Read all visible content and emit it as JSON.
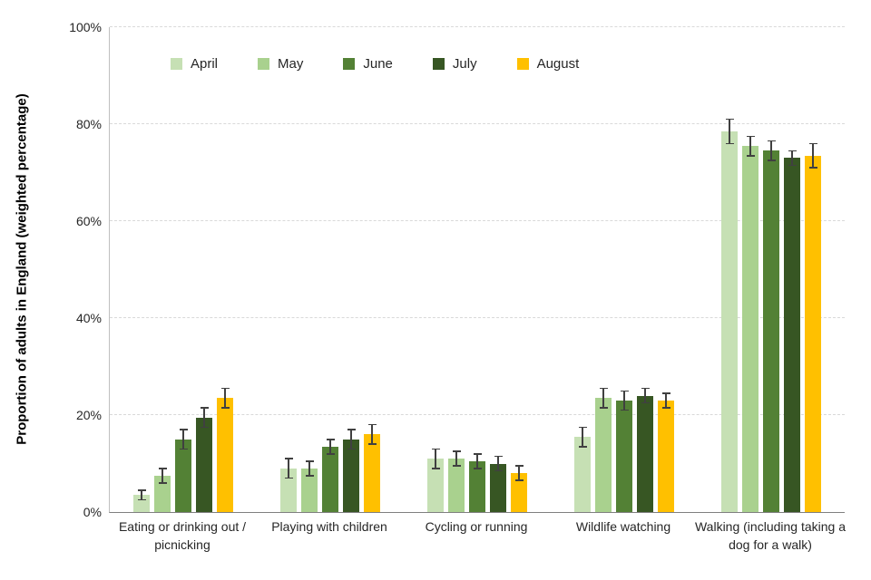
{
  "chart_data": {
    "type": "bar",
    "title": "",
    "xlabel": "",
    "ylabel": "Proportion of adults in England (weighted percentage)",
    "ylim": [
      0,
      100
    ],
    "yticks": [
      0,
      20,
      40,
      60,
      80,
      100
    ],
    "ytick_suffix": "%",
    "grid": "dashed-horizontal",
    "legend_position": "top-inside",
    "error_bar_color": "#404040",
    "categories": [
      "Eating or drinking out / picnicking",
      "Playing with children",
      "Cycling or running",
      "Wildlife watching",
      "Walking (including taking a dog for a walk)"
    ],
    "series": [
      {
        "name": "April",
        "color": "#c6e0b4",
        "values": [
          3.5,
          9,
          11,
          15.5,
          78.5
        ],
        "errors": [
          1.0,
          2.0,
          2.0,
          2.0,
          2.5
        ]
      },
      {
        "name": "May",
        "color": "#a9d18e",
        "values": [
          7.5,
          9,
          11,
          23.5,
          75.5
        ],
        "errors": [
          1.5,
          1.5,
          1.5,
          2.0,
          2.0
        ]
      },
      {
        "name": "June",
        "color": "#538135",
        "values": [
          15,
          13.5,
          10.5,
          23,
          74.5
        ],
        "errors": [
          2.0,
          1.5,
          1.5,
          2.0,
          2.0
        ]
      },
      {
        "name": "July",
        "color": "#375623",
        "values": [
          19.5,
          15,
          10,
          24,
          73
        ],
        "errors": [
          2.0,
          2.0,
          1.5,
          1.5,
          1.5
        ]
      },
      {
        "name": "August",
        "color": "#ffc000",
        "values": [
          23.5,
          16,
          8,
          23,
          73.5
        ],
        "errors": [
          2.0,
          2.0,
          1.5,
          1.5,
          2.5
        ]
      }
    ]
  }
}
